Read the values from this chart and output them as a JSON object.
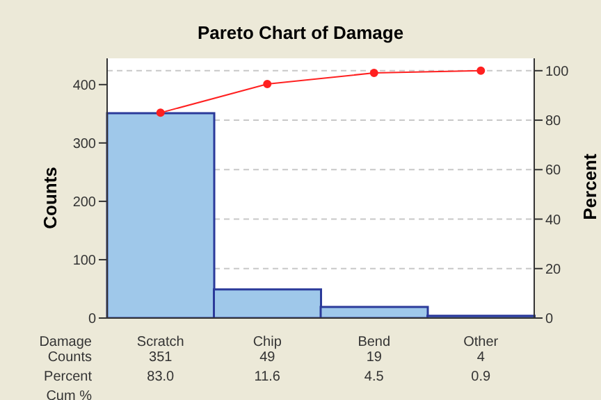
{
  "chart_data": {
    "type": "bar",
    "title": "Pareto Chart of Damage",
    "ylabel": "Counts",
    "y2label": "Percent",
    "categories": [
      "Scratch",
      "Chip",
      "Bend",
      "Other"
    ],
    "series": [
      {
        "name": "Counts",
        "color": "#9fc8ea",
        "values": [
          351,
          49,
          19,
          4
        ],
        "value_labels": [
          "351",
          "49",
          "19",
          "4"
        ]
      },
      {
        "type": "line",
        "axis": "y2",
        "color": "#ff2020",
        "values": [
          83.0,
          94.6,
          99.1,
          100.0
        ]
      }
    ],
    "ylim": [
      0,
      445
    ],
    "yticks": [
      0,
      100,
      200,
      300,
      400
    ],
    "y2lim": [
      0,
      105
    ],
    "y2ticks": [
      0,
      20,
      40,
      60,
      80,
      100
    ],
    "grid": "y",
    "marker": "circle",
    "annotations": [
      "Damage",
      "Percent",
      "Cum %",
      "83.0",
      "11.6",
      "4.5",
      "0.9"
    ]
  }
}
